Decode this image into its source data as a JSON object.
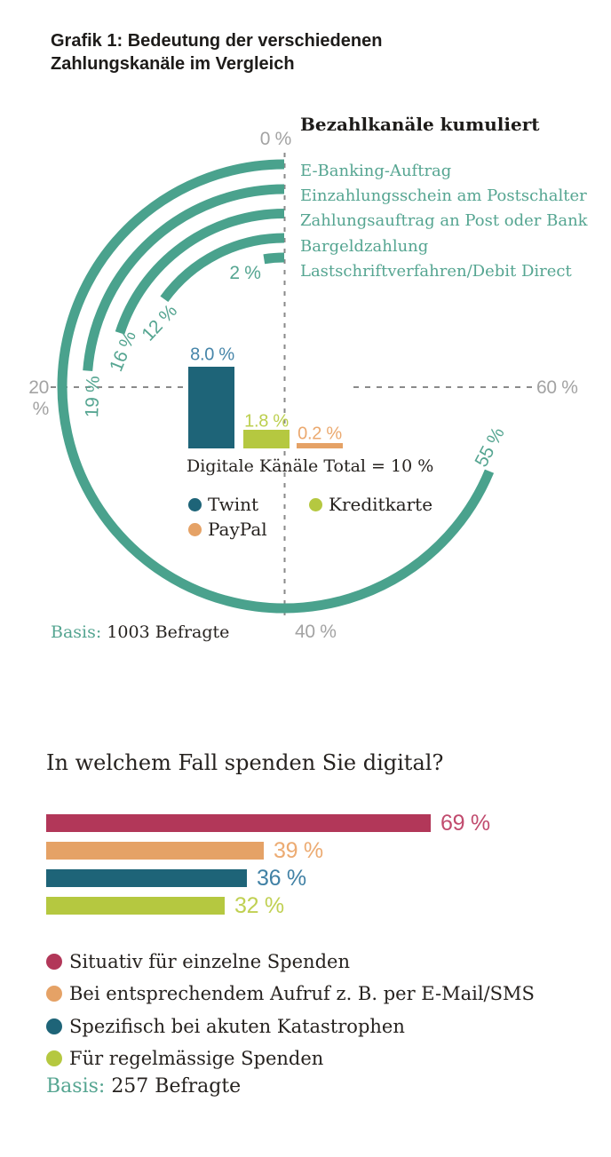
{
  "page": {
    "title_line1": "Grafik 1: Bedeutung der verschiedenen",
    "title_line2": "Zahlungskanäle im Vergleich"
  },
  "colors": {
    "teal": "#4AA28D",
    "teal_text": "#55A591",
    "axis_gray": "#A3A3A3",
    "dash_gray": "#8A8A8A",
    "text_dark": "#26221F",
    "chart1_bars": [
      "#1E6478",
      "#B5C840",
      "#E5A266"
    ],
    "chart1_bar_labels": [
      "#4685A9",
      "#BCCF4E",
      "#EBA96F"
    ],
    "chart2": [
      "#B23759",
      "#E5A266",
      "#1E6478",
      "#B5C840"
    ],
    "chart2_labels": [
      "#C14B6E",
      "#ECAB72",
      "#4181A5",
      "#C0D052"
    ]
  },
  "chart_data": [
    {
      "type": "radial-arc",
      "title": "Bezahlkanäle kumuliert",
      "unit": "%",
      "axis_ticks": [
        "0 %",
        "20 %",
        "40 %",
        "60 %"
      ],
      "scale": {
        "start_percent_at_top": 0,
        "deg_per_percent": 4.5,
        "direction": "counterclockwise",
        "full_circle_percent": 80
      },
      "series": [
        {
          "name": "E-Banking-Auftrag",
          "value": 55,
          "label": "55 %"
        },
        {
          "name": "Einzahlungsschein am Postschalter",
          "value": 19,
          "label": "19 %"
        },
        {
          "name": "Zahlungsauftrag an Post oder Bank",
          "value": 16,
          "label": "16 %"
        },
        {
          "name": "Bargeldzahlung",
          "value": 12,
          "label": "12 %"
        },
        {
          "name": "Lastschriftverfahren/Debit Direct",
          "value": 2,
          "label": "2 %"
        }
      ],
      "basis_label": "Basis:",
      "basis_value": "1003 Befragte"
    },
    {
      "type": "bar",
      "note": "Digitale Känäle Total = 10 %",
      "categories": [
        "Twint",
        "Kreditkarte",
        "PayPal"
      ],
      "values": [
        8.0,
        1.8,
        0.2
      ],
      "labels": [
        "8.0 %",
        "1.8 %",
        "0.2 %"
      ]
    },
    {
      "type": "bar",
      "title": "In welchem Fall spenden Sie digital?",
      "categories": [
        "Situativ für einzelne Spenden",
        "Bei entsprechendem Aufruf z. B. per E-Mail/SMS",
        "Spezifisch bei akuten Katastrophen",
        "Für regelmässige Spenden"
      ],
      "values": [
        69,
        39,
        36,
        32
      ],
      "labels": [
        "69 %",
        "39 %",
        "36 %",
        "32 %"
      ],
      "basis_label": "Basis:",
      "basis_value": "257 Befragte"
    }
  ]
}
